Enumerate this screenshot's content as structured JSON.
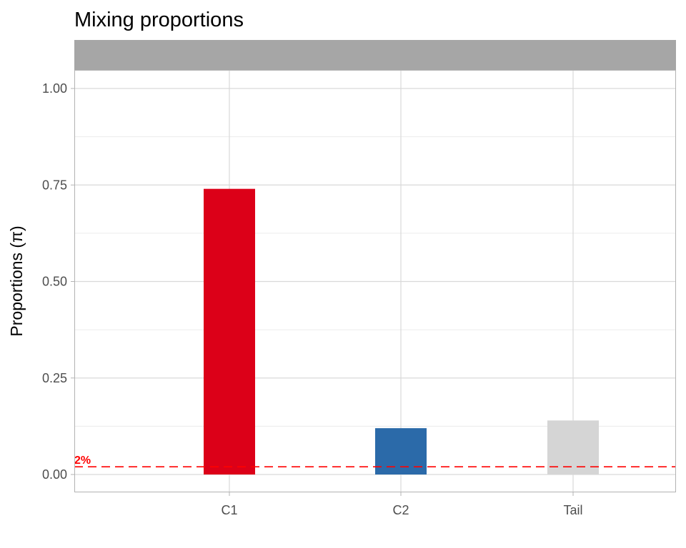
{
  "chart_data": {
    "type": "bar",
    "title": "Mixing proportions",
    "xlabel": "",
    "ylabel": "Proportions (π)",
    "categories": [
      "C1",
      "C2",
      "Tail"
    ],
    "values": [
      0.74,
      0.12,
      0.14
    ],
    "colors": [
      "#dc0018",
      "#2b6aa9",
      "#d5d5d5"
    ],
    "ylim": [
      -0.047,
      1.0
    ],
    "yticks": [
      0.0,
      0.25,
      0.5,
      0.75,
      1.0
    ],
    "ytick_labels": [
      "0.00",
      "0.25",
      "0.50",
      "0.75",
      "1.00"
    ],
    "grid": true,
    "facet_strip": "",
    "reference_line": {
      "y": 0.02,
      "label": "2%",
      "color": "#ff0000",
      "style": "dashed"
    }
  }
}
